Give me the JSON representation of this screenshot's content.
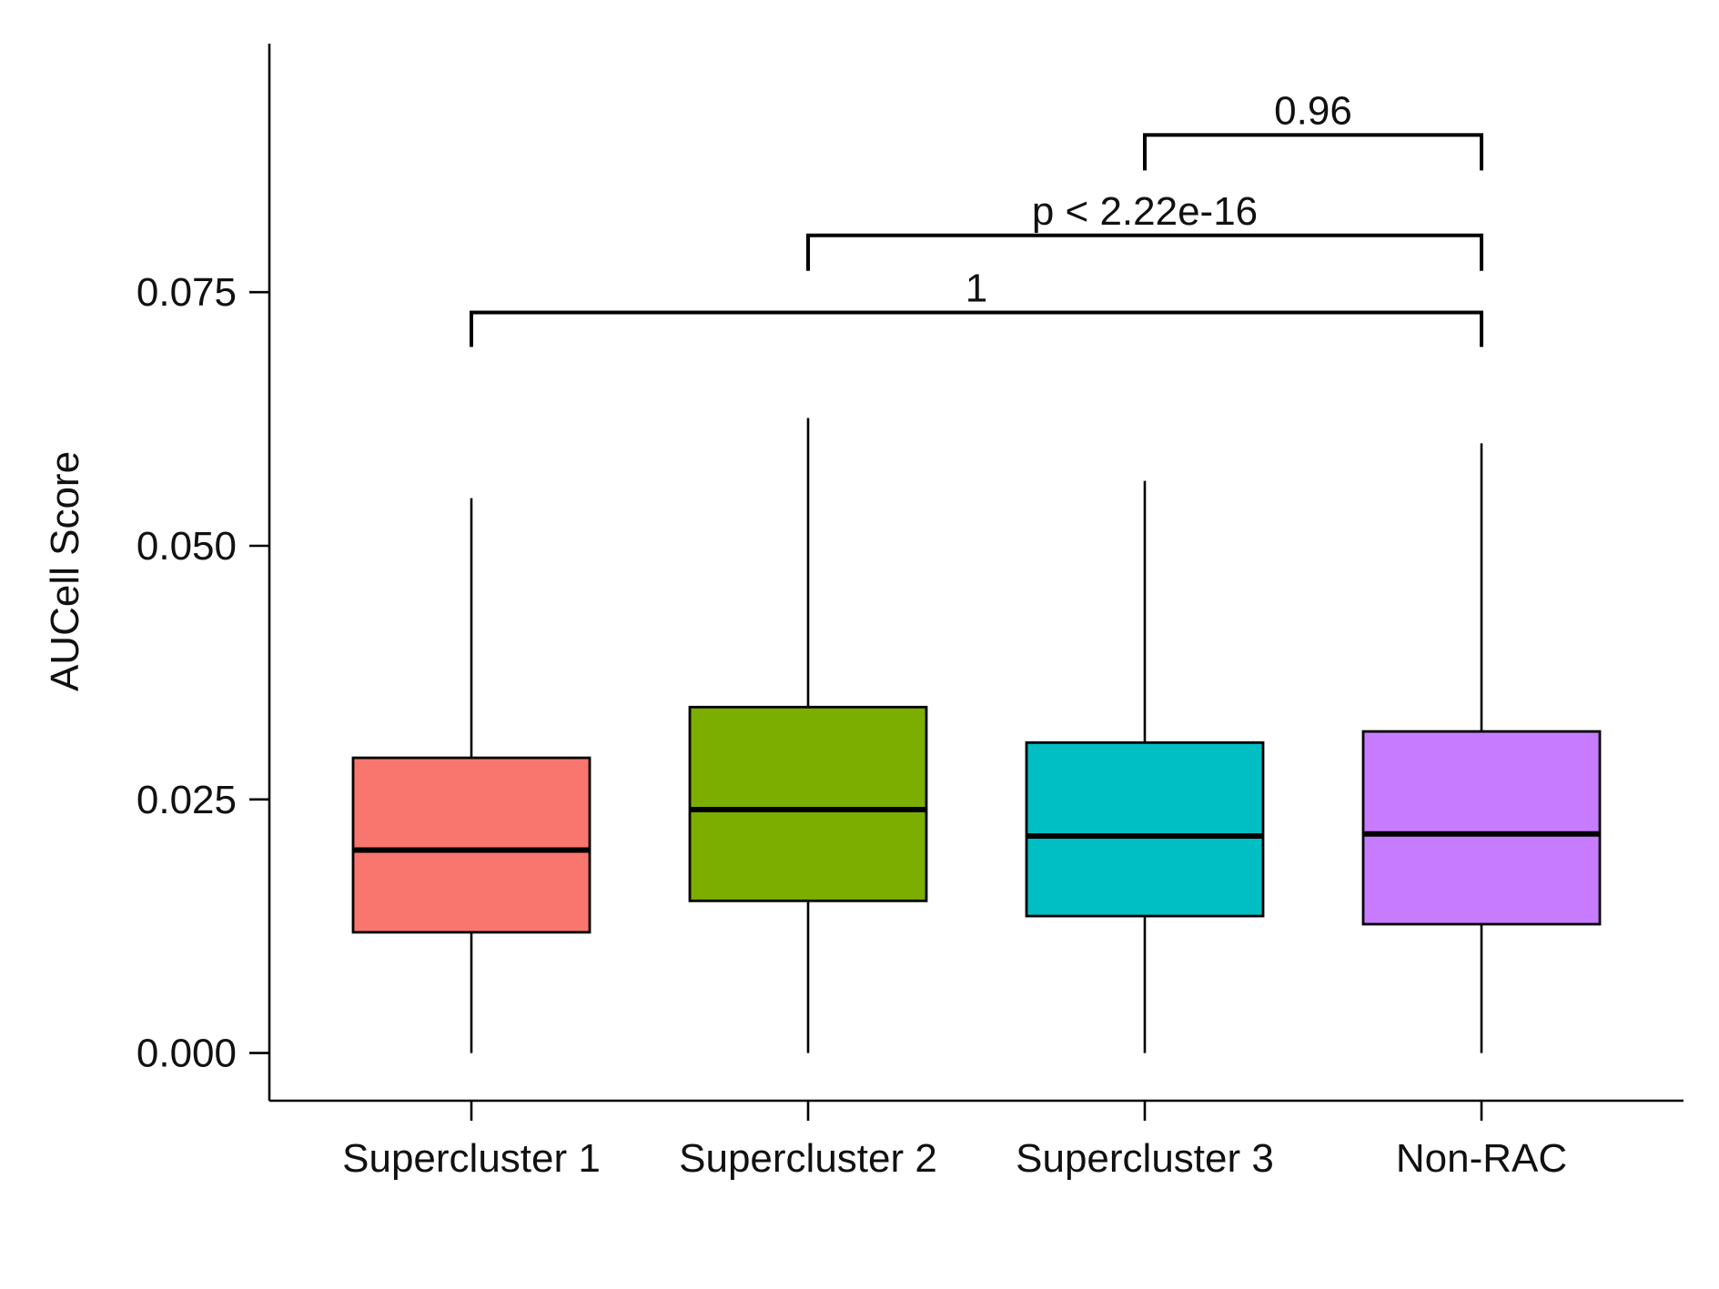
{
  "chart_data": {
    "type": "boxplot",
    "title": "",
    "xlabel": "",
    "ylabel": "AUCell Score",
    "ylim": [
      -0.0047,
      0.0995
    ],
    "yticks": [
      0.0,
      0.025,
      0.05,
      0.075
    ],
    "ytick_labels": [
      "0.000",
      "0.025",
      "0.050",
      "0.075"
    ],
    "grid": false,
    "legend": "none",
    "categories": [
      "Supercluster 1",
      "Supercluster 2",
      "Supercluster 3",
      "Non-RAC"
    ],
    "boxes": [
      {
        "name": "Supercluster 1",
        "color": "#F8766D",
        "whisker_low": 0.0,
        "q1": 0.0119,
        "median": 0.02,
        "q3": 0.0291,
        "whisker_high": 0.0547
      },
      {
        "name": "Supercluster 2",
        "color": "#7CAE00",
        "whisker_low": 0.0,
        "q1": 0.015,
        "median": 0.024,
        "q3": 0.0341,
        "whisker_high": 0.0626
      },
      {
        "name": "Supercluster 3",
        "color": "#00BFC4",
        "whisker_low": 0.0,
        "q1": 0.0135,
        "median": 0.0214,
        "q3": 0.0306,
        "whisker_high": 0.0564
      },
      {
        "name": "Non-RAC",
        "color": "#C77CFF",
        "whisker_low": 0.0,
        "q1": 0.0127,
        "median": 0.0216,
        "q3": 0.0317,
        "whisker_high": 0.0601
      }
    ],
    "comparisons": [
      {
        "from": "Supercluster 3",
        "to": "Non-RAC",
        "label": "0.96",
        "y": 0.0905,
        "tip": 0.087
      },
      {
        "from": "Supercluster 2",
        "to": "Non-RAC",
        "label": "p < 2.22e-16",
        "y": 0.0806,
        "tip": 0.0771
      },
      {
        "from": "Supercluster 1",
        "to": "Non-RAC",
        "label": "1",
        "y": 0.073,
        "tip": 0.0696
      }
    ]
  }
}
